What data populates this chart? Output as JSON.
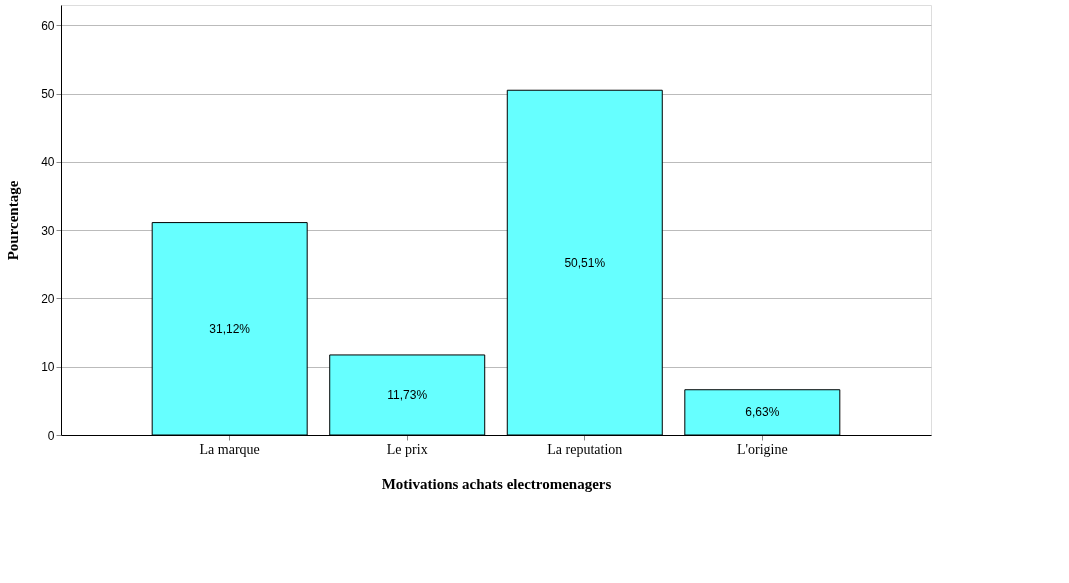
{
  "chart_data": {
    "type": "bar",
    "categories": [
      "La marque",
      "Le prix",
      "La reputation",
      "L'origine"
    ],
    "values": [
      31.12,
      11.73,
      50.51,
      6.63
    ],
    "value_labels": [
      "31,12%",
      "11,73%",
      "50,51%",
      "6,63%"
    ],
    "color": "#66ffff",
    "xlabel": "Motivations achats electromenagers",
    "ylabel": "Pourcentage",
    "ylim": [
      0,
      63
    ],
    "yticks": [
      0,
      10,
      20,
      30,
      40,
      50,
      60
    ],
    "grid": "y"
  }
}
